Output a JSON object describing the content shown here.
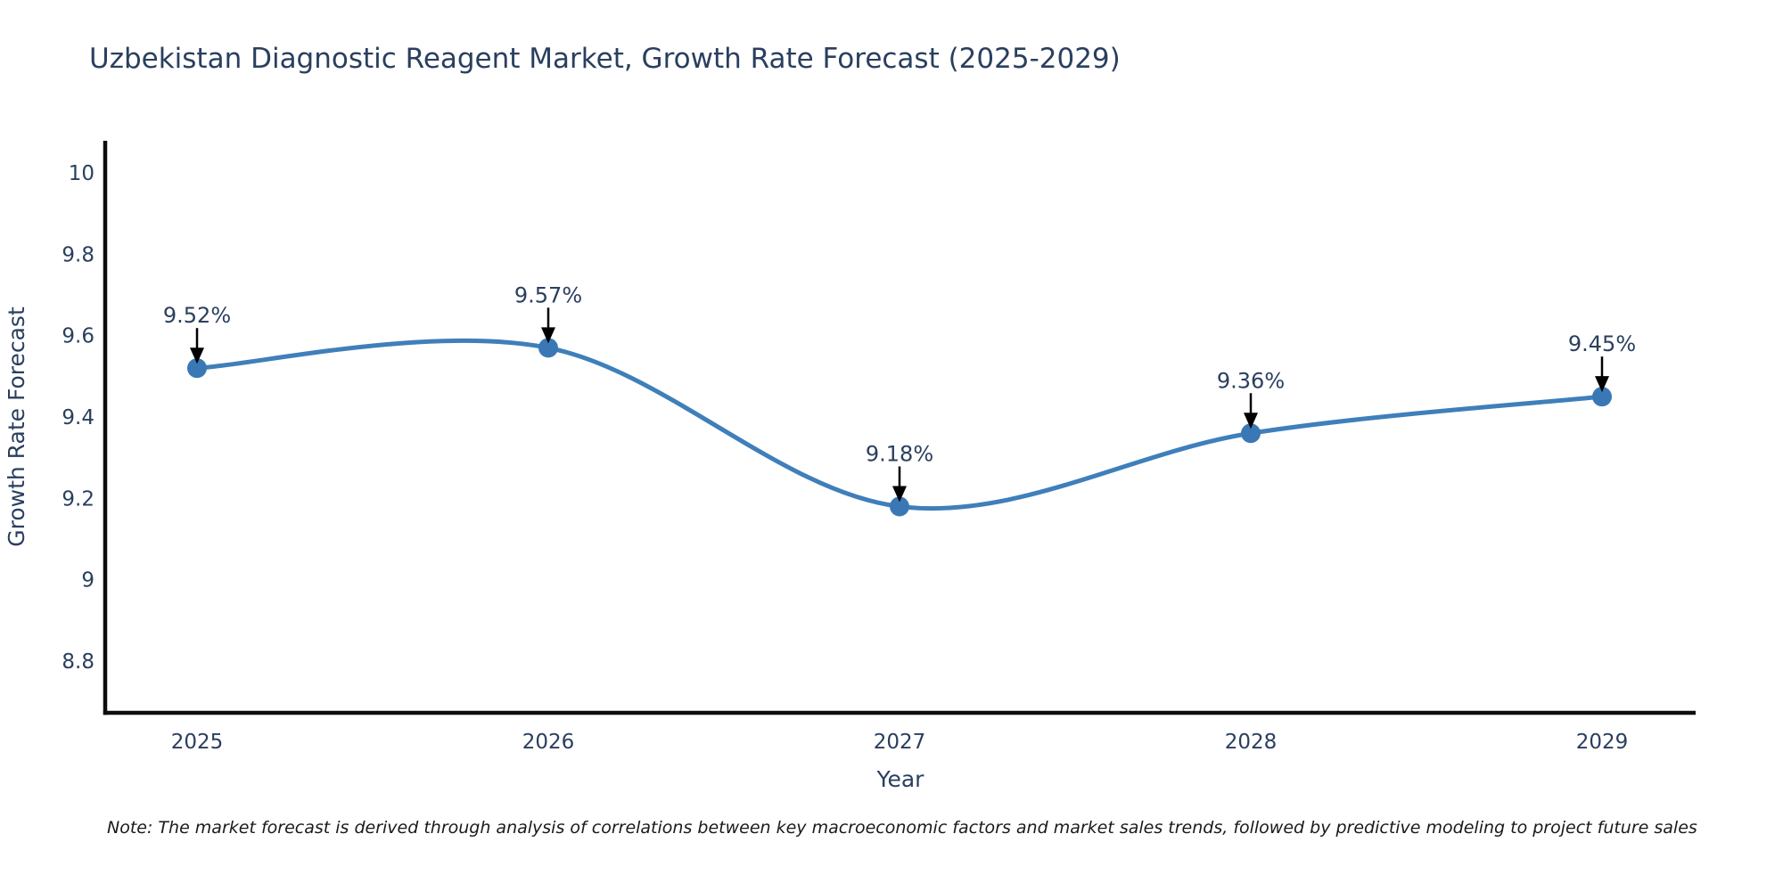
{
  "title": "Uzbekistan Diagnostic Reagent Market, Growth Rate Forecast (2025-2029)",
  "note": "Note: The market forecast is derived through analysis of correlations between key macroeconomic factors and market sales trends, followed by predictive modeling to project future sales",
  "chart_data": {
    "type": "line",
    "line_shape": "spline",
    "x": [
      2025,
      2026,
      2027,
      2028,
      2029
    ],
    "x_tick_labels": [
      "2025",
      "2026",
      "2027",
      "2028",
      "2029"
    ],
    "series": [
      {
        "name": "Growth Rate Forecast",
        "values": [
          9.52,
          9.57,
          9.18,
          9.36,
          9.45
        ]
      }
    ],
    "point_labels": [
      "9.52%",
      "9.57%",
      "9.18%",
      "9.36%",
      "9.45%"
    ],
    "title": "Uzbekistan Diagnostic Reagent Market, Growth Rate Forecast (2025-2029)",
    "xlabel": "Year",
    "ylabel": "Growth Rate Forecast",
    "y_tick_labels": [
      "10",
      "9.8",
      "9.6",
      "9.4",
      "9.2",
      "9",
      "8.8"
    ],
    "y_tick_values": [
      10,
      9.8,
      9.6,
      9.4,
      9.2,
      9,
      8.8
    ],
    "ylim": [
      8.68,
      10.07
    ],
    "grid": false,
    "legend": "none",
    "markers": true,
    "annotations_have_arrows": true,
    "colors": {
      "line": "#3f7fba",
      "marker": "#3a78b5",
      "text": "#2a3f5f",
      "axis": "#0d0d0d",
      "annotation_text": "#2a3f5f",
      "annotation_arrow": "#000000",
      "background": "#ffffff"
    }
  }
}
